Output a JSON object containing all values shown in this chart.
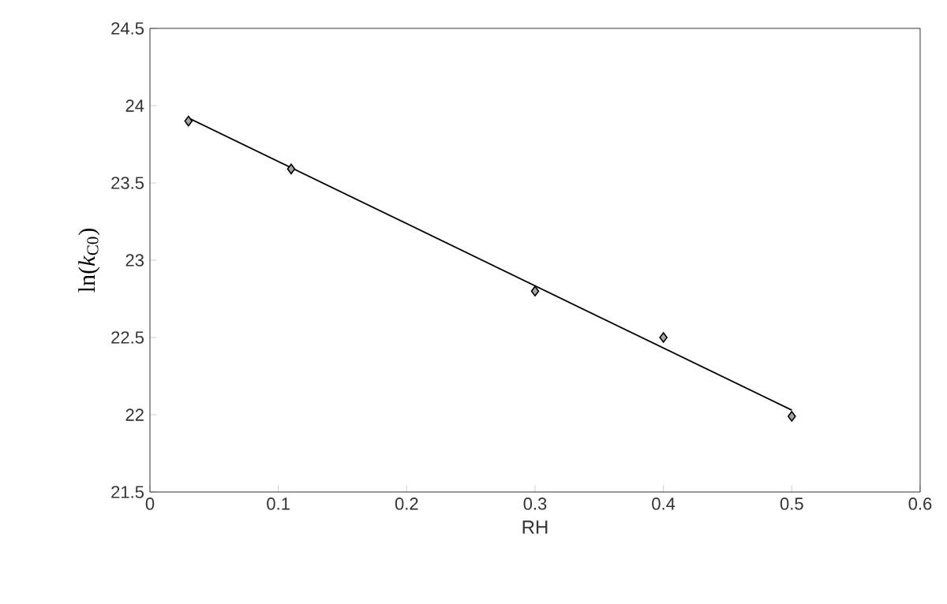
{
  "chart_data": {
    "type": "scatter",
    "xlabel": "RH",
    "ylabel": "ln(*k*$_{C0}$)",
    "xlim": [
      0,
      0.6
    ],
    "ylim": [
      21.5,
      24.5
    ],
    "xticks": [
      0,
      0.1,
      0.2,
      0.3,
      0.4,
      0.5,
      0.6
    ],
    "yticks": [
      21.5,
      22,
      22.5,
      23,
      23.5,
      24,
      24.5
    ],
    "grid": false,
    "series": [
      {
        "color": "#000000",
        "marker": "diamond",
        "x": [
          0.03,
          0.11,
          0.3,
          0.4,
          0.5
        ],
        "values": [
          23.9,
          23.59,
          22.8,
          22.5,
          21.99
        ]
      },
      {
        "type": "line",
        "color": "#000000",
        "marker": "none",
        "line_style": "solid",
        "x": [
          0.03,
          0.5
        ],
        "values": [
          23.92,
          22.03
        ]
      }
    ]
  }
}
